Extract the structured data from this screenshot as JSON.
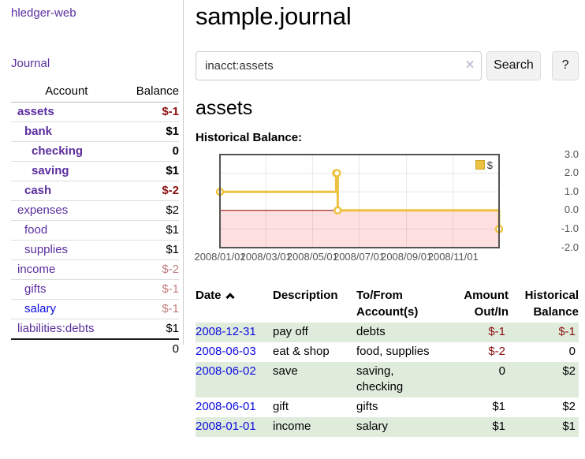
{
  "colors": {
    "purple": "#5b2e9e",
    "blue": "#0c0ce0",
    "negative": "#8b1111",
    "negative-muted": "#c27d7d",
    "row-highlight": "#dfecdb",
    "chart-line": "#edc240",
    "chart-border": "#545454",
    "zero-line": "#8b0000",
    "axis-text": "#545454",
    "clear-x": "#c9c3da"
  },
  "sidebar": {
    "brand": "hledger-web",
    "nav_journal": "Journal",
    "accounts_table": {
      "headers": {
        "account": "Account",
        "balance": "Balance"
      },
      "rows": [
        {
          "account": "assets",
          "indent": 1,
          "bold": true,
          "link_color": "purple",
          "balance": "$-1",
          "balance_style": "negative"
        },
        {
          "account": "bank",
          "indent": 2,
          "bold": true,
          "link_color": "purple",
          "balance": "$1",
          "balance_style": "normal"
        },
        {
          "account": "checking",
          "indent": 3,
          "bold": true,
          "link_color": "purple",
          "balance": "0",
          "balance_style": "normal"
        },
        {
          "account": "saving",
          "indent": 3,
          "bold": true,
          "link_color": "purple",
          "balance": "$1",
          "balance_style": "normal"
        },
        {
          "account": "cash",
          "indent": 2,
          "bold": true,
          "link_color": "purple",
          "balance": "$-2",
          "balance_style": "negative"
        },
        {
          "account": "expenses",
          "indent": 1,
          "bold": false,
          "link_color": "purple",
          "balance": "$2",
          "balance_style": "normal"
        },
        {
          "account": "food",
          "indent": 2,
          "bold": false,
          "link_color": "purple",
          "balance": "$1",
          "balance_style": "normal"
        },
        {
          "account": "supplies",
          "indent": 2,
          "bold": false,
          "link_color": "purple",
          "balance": "$1",
          "balance_style": "normal"
        },
        {
          "account": "income",
          "indent": 1,
          "bold": false,
          "link_color": "purple",
          "balance": "$-2",
          "balance_style": "negative-muted"
        },
        {
          "account": "gifts",
          "indent": 2,
          "bold": false,
          "link_color": "purple",
          "balance": "$-1",
          "balance_style": "negative-muted"
        },
        {
          "account": "salary",
          "indent": 2,
          "bold": false,
          "link_color": "blue",
          "balance": "$-1",
          "balance_style": "negative-muted"
        },
        {
          "account": "liabilities:debts",
          "indent": 1,
          "bold": false,
          "link_color": "purple",
          "balance": "$1",
          "balance_style": "normal"
        }
      ],
      "total": "0"
    }
  },
  "main": {
    "title": "sample.journal",
    "search": {
      "value": "inacct:assets",
      "clear_icon": "×",
      "search_button": "Search",
      "help_button": "?"
    },
    "account_heading": "assets",
    "chart_label": "Historical Balance:"
  },
  "chart_data": {
    "type": "line",
    "title": "Historical Balance:",
    "series": [
      {
        "name": "$",
        "color": "#edc240",
        "steps": true,
        "points": [
          [
            "2008-01-01",
            1.0
          ],
          [
            "2008-06-01",
            2.0
          ],
          [
            "2008-06-02",
            2.0
          ],
          [
            "2008-06-03",
            0.0
          ],
          [
            "2008-12-31",
            -1.0
          ]
        ]
      }
    ],
    "x_domain": [
      "2008-01-01",
      "2008-12-31"
    ],
    "x_tick_labels": [
      "2008/01/01",
      "2008/03/01",
      "2008/05/01",
      "2008/07/01",
      "2008/09/01",
      "2008/11/01"
    ],
    "y_tick_labels": [
      "3.0",
      "2.0",
      "1.0",
      "0.0",
      "-1.0",
      "-2.0"
    ],
    "ylim": [
      -2,
      3
    ],
    "grid": true,
    "negative_region": true,
    "legend": {
      "label": "$",
      "position": "top-right"
    }
  },
  "register": {
    "headers": {
      "date": "Date",
      "description": "Description",
      "accounts": [
        "To/From",
        "Account(s)"
      ],
      "amount": [
        "Amount",
        "Out/In"
      ],
      "balance": [
        "Historical",
        "Balance"
      ]
    },
    "rows": [
      {
        "date": "2008-12-31",
        "description": "pay off",
        "accounts": "debts",
        "amount": "$-1",
        "amount_negative": true,
        "balance": "$-1",
        "balance_negative": true
      },
      {
        "date": "2008-06-03",
        "description": "eat & shop",
        "accounts": "food, supplies",
        "amount": "$-2",
        "amount_negative": true,
        "balance": "0",
        "balance_negative": false
      },
      {
        "date": "2008-06-02",
        "description": "save",
        "accounts": "saving, checking",
        "amount": "0",
        "amount_negative": false,
        "balance": "$2",
        "balance_negative": false
      },
      {
        "date": "2008-06-01",
        "description": "gift",
        "accounts": "gifts",
        "amount": "$1",
        "amount_negative": false,
        "balance": "$2",
        "balance_negative": false
      },
      {
        "date": "2008-01-01",
        "description": "income",
        "accounts": "salary",
        "amount": "$1",
        "amount_negative": false,
        "balance": "$1",
        "balance_negative": false
      }
    ]
  }
}
